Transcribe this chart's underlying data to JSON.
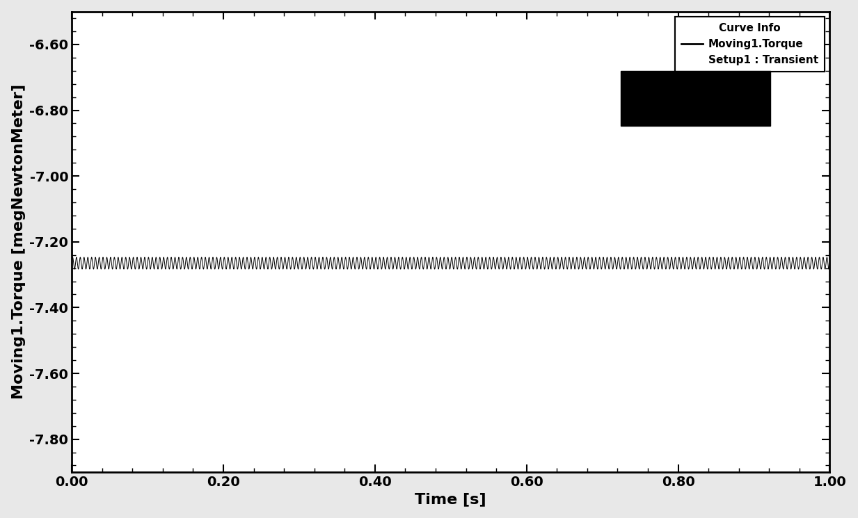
{
  "x_min": 0.0,
  "x_max": 1.0,
  "y_min": -7.9,
  "y_max": -6.5,
  "x_ticks": [
    0.0,
    0.2,
    0.4,
    0.6,
    0.8,
    1.0
  ],
  "x_tick_labels": [
    "0.00",
    "0.20",
    "0.40",
    "0.60",
    "0.80",
    "1.00"
  ],
  "y_ticks": [
    -7.8,
    -7.6,
    -7.4,
    -7.2,
    -7.0,
    -6.8,
    -6.6
  ],
  "y_tick_labels": [
    "-7.80",
    "-7.60",
    "-7.40",
    "-7.20",
    "-7.00",
    "-6.80",
    "-6.60"
  ],
  "xlabel": "Time [s]",
  "ylabel": "Moving1.Torque [megNewtonMeter]",
  "line_mean": -7.265,
  "line_ripple_amplitude": 0.018,
  "line_ripple_freq": 200,
  "line_color": "#000000",
  "fig_bg_color": "#e8e8e8",
  "plot_bg_color": "#ffffff",
  "legend_title": "Curve Info",
  "legend_line_label": "Moving1.Torque",
  "legend_sub_label": "Setup1 : Transient",
  "tick_labelsize": 14,
  "label_fontsize": 16,
  "legend_fontsize": 11,
  "border_color": "#000000",
  "minor_tick_count": 4
}
